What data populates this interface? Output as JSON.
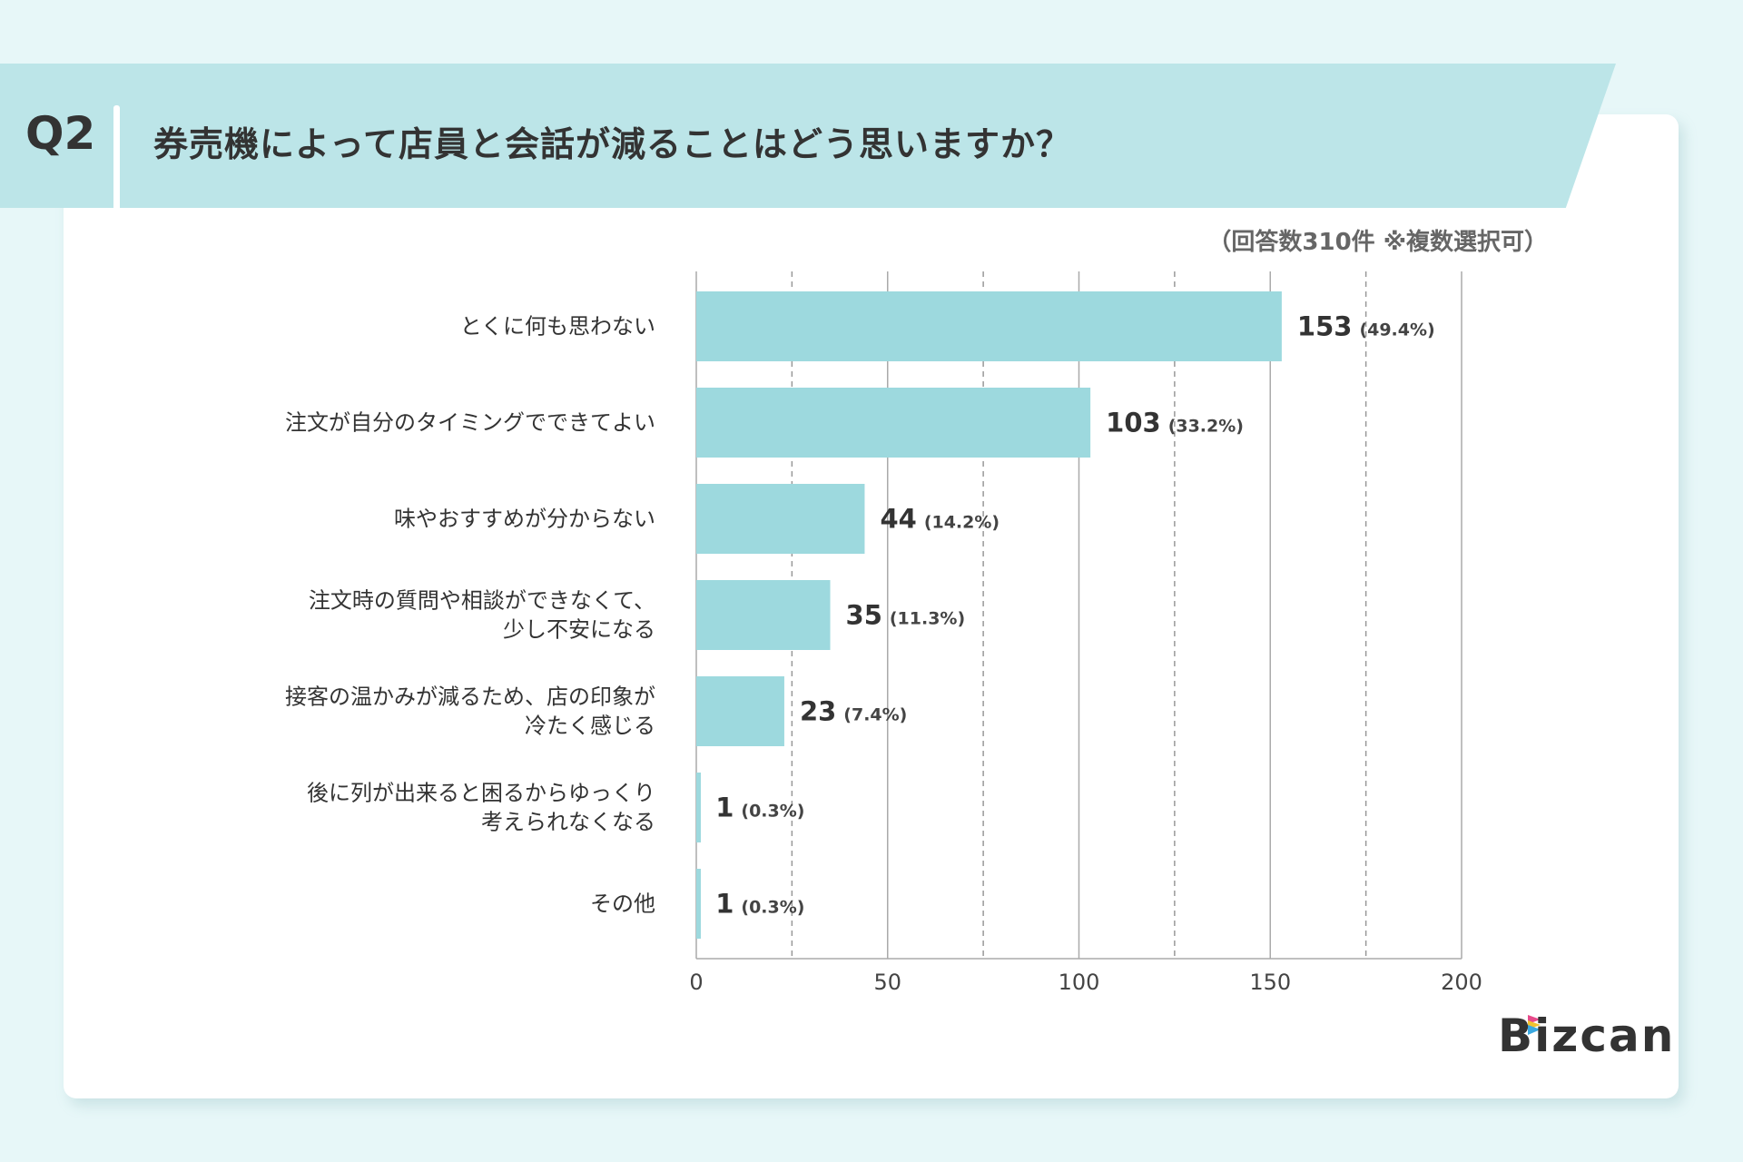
{
  "header": {
    "question_number": "Q2",
    "title": "券売機によって店員と会話が減ることはどう思いますか？",
    "note": "（回答数310件 ※複数選択可）"
  },
  "logo": {
    "text": "Bizcan"
  },
  "colors": {
    "bar": "#9dd9de",
    "banner": "#bce5e8",
    "background": "#e7f7f8",
    "text": "#333333"
  },
  "chart_data": {
    "type": "bar",
    "orientation": "horizontal",
    "categories": [
      [
        "とくに何も思わない"
      ],
      [
        "注文が自分のタイミングでできてよい"
      ],
      [
        "味やおすすめが分からない"
      ],
      [
        "注文時の質問や相談ができなくて、",
        "少し不安になる"
      ],
      [
        "接客の温かみが減るため、店の印象が",
        "冷たく感じる"
      ],
      [
        "後に列が出来ると困るからゆっくり",
        "考えられなくなる"
      ],
      [
        "その他"
      ]
    ],
    "values": [
      153,
      103,
      44,
      35,
      23,
      1,
      1
    ],
    "percent_labels": [
      "(49.4%)",
      "(33.2%)",
      "(14.2%)",
      "(11.3%)",
      "(7.4%)",
      "(0.3%)",
      "(0.3%)"
    ],
    "xlim": [
      0,
      200
    ],
    "xticks": [
      "0",
      "50",
      "100",
      "150",
      "200"
    ],
    "minor_gridlines": [
      25,
      75,
      125,
      175
    ],
    "grid": true,
    "title": "",
    "xlabel": "",
    "ylabel": ""
  }
}
